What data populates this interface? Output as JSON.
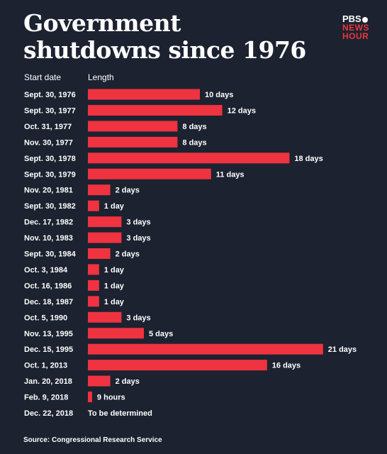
{
  "header": {
    "title": "Government shutdowns since 1976",
    "logo_top": "PBS",
    "logo_line1": "NEWS",
    "logo_line2": "HOUR"
  },
  "columns": {
    "date": "Start date",
    "length": "Length"
  },
  "source": "Source: Congressional Research Service",
  "colors": {
    "background": "#1c2230",
    "bar": "#ef3340",
    "text": "#ffffff"
  },
  "chart_data": {
    "type": "bar",
    "orientation": "horizontal",
    "unit": "days",
    "categories": [
      "Sept. 30, 1976",
      "Sept. 30, 1977",
      "Oct. 31, 1977",
      "Nov. 30, 1977",
      "Sept. 30, 1978",
      "Sept. 30, 1979",
      "Nov. 20, 1981",
      "Sept. 30, 1982",
      "Dec. 17, 1982",
      "Nov. 10, 1983",
      "Sept. 30, 1984",
      "Oct. 3, 1984",
      "Oct. 16, 1986",
      "Dec. 18, 1987",
      "Oct. 5, 1990",
      "Nov. 13, 1995",
      "Dec. 15, 1995",
      "Oct. 1, 2013",
      "Jan. 20, 2018",
      "Feb. 9, 2018",
      "Dec. 22, 2018"
    ],
    "values": [
      10,
      12,
      8,
      8,
      18,
      11,
      2,
      1,
      3,
      3,
      2,
      1,
      1,
      1,
      3,
      5,
      21,
      16,
      2,
      0.375,
      null
    ],
    "labels": [
      "10 days",
      "12 days",
      "8 days",
      "8 days",
      "18 days",
      "11 days",
      "2 days",
      "1 day",
      "3 days",
      "3 days",
      "2 days",
      "1 day",
      "1 day",
      "1 day",
      "3 days",
      "5 days",
      "21 days",
      "16 days",
      "2 days",
      "9 hours",
      "To be determined"
    ],
    "xlim": [
      0,
      21
    ],
    "grid": false,
    "legend": "none"
  }
}
